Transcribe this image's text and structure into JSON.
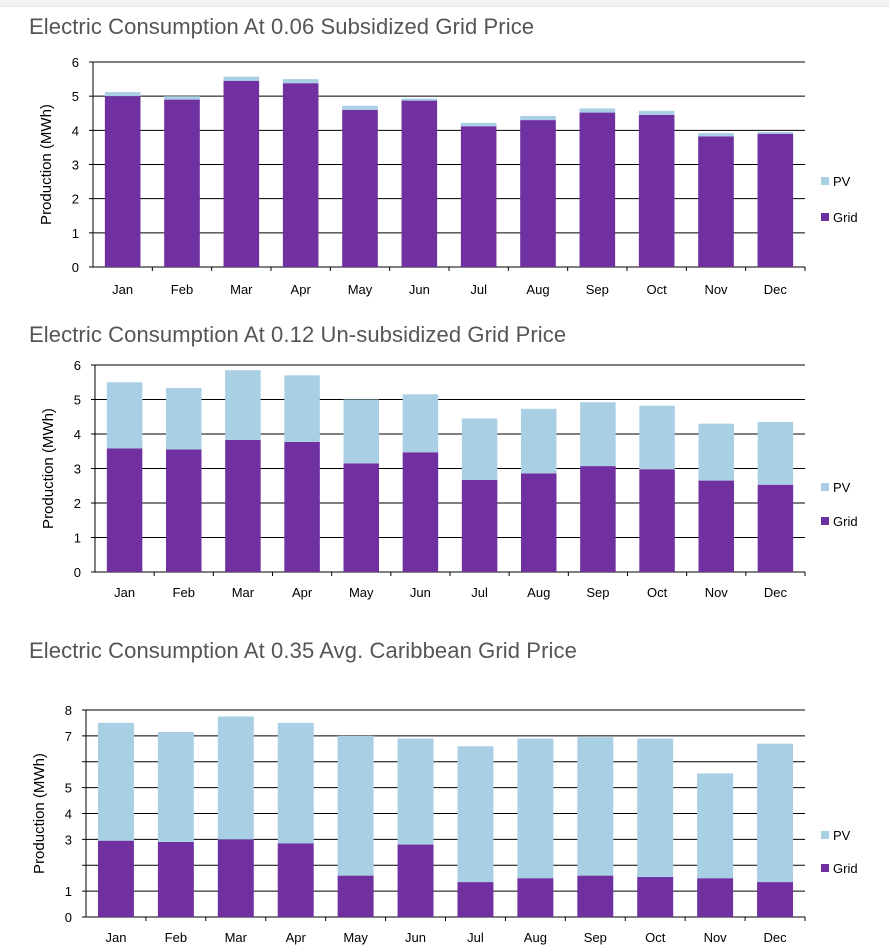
{
  "chart_data": [
    {
      "type": "bar",
      "stacked": true,
      "title": "Electric Consumption At 0.06 Subsidized Grid Price",
      "ylabel": "Production (MWh)",
      "xlabel": "",
      "ylim": [
        0,
        6
      ],
      "yticks": [
        0,
        1,
        2,
        3,
        4,
        5,
        6
      ],
      "grid": true,
      "legend_position": "right",
      "categories": [
        "Jan",
        "Feb",
        "Mar",
        "Apr",
        "May",
        "Jun",
        "Jul",
        "Aug",
        "Sep",
        "Oct",
        "Nov",
        "Dec"
      ],
      "series": [
        {
          "name": "Grid",
          "color": "#7030a0",
          "values": [
            5.0,
            4.9,
            5.45,
            5.38,
            4.6,
            4.87,
            4.12,
            4.3,
            4.52,
            4.45,
            3.82,
            3.9
          ]
        },
        {
          "name": "PV",
          "color": "#a9cfe5",
          "values": [
            0.12,
            0.1,
            0.12,
            0.12,
            0.12,
            0.06,
            0.1,
            0.12,
            0.12,
            0.12,
            0.1,
            0.05
          ]
        }
      ],
      "legend_order": [
        "PV",
        "Grid"
      ]
    },
    {
      "type": "bar",
      "stacked": true,
      "title": "Electric Consumption At 0.12 Un-subsidized Grid Price",
      "ylabel": "Production (MWh)",
      "xlabel": "",
      "ylim": [
        0,
        6
      ],
      "yticks": [
        0,
        1,
        2,
        3,
        4,
        5,
        6
      ],
      "grid": true,
      "legend_position": "right",
      "categories": [
        "Jan",
        "Feb",
        "Mar",
        "Apr",
        "May",
        "Jun",
        "Jul",
        "Aug",
        "Sep",
        "Oct",
        "Nov",
        "Dec"
      ],
      "series": [
        {
          "name": "Grid",
          "color": "#7030a0",
          "values": [
            3.58,
            3.55,
            3.83,
            3.77,
            3.15,
            3.47,
            2.67,
            2.86,
            3.07,
            2.98,
            2.65,
            2.53
          ]
        },
        {
          "name": "PV",
          "color": "#a9cfe5",
          "values": [
            1.92,
            1.78,
            2.02,
            1.93,
            1.85,
            1.68,
            1.78,
            1.87,
            1.85,
            1.84,
            1.65,
            1.82
          ]
        }
      ],
      "legend_order": [
        "PV",
        "Grid"
      ]
    },
    {
      "type": "bar",
      "stacked": true,
      "title": "Electric Consumption At 0.35 Avg. Caribbean Grid Price",
      "ylabel": "Production (MWh)",
      "xlabel": "",
      "ylim": [
        0,
        8
      ],
      "yticks": [
        0,
        1,
        3,
        4,
        5,
        7,
        8
      ],
      "grid": true,
      "legend_position": "right",
      "categories": [
        "Jan",
        "Feb",
        "Mar",
        "Apr",
        "May",
        "Jun",
        "Jul",
        "Aug",
        "Sep",
        "Oct",
        "Nov",
        "Dec"
      ],
      "series": [
        {
          "name": "Grid",
          "color": "#7030a0",
          "values": [
            2.95,
            2.9,
            3.0,
            2.85,
            1.6,
            2.8,
            1.35,
            1.5,
            1.6,
            1.55,
            1.5,
            1.35
          ]
        },
        {
          "name": "PV",
          "color": "#a9cfe5",
          "values": [
            4.55,
            4.25,
            4.75,
            4.65,
            5.4,
            4.1,
            5.25,
            5.4,
            5.35,
            5.35,
            4.05,
            5.35
          ]
        }
      ],
      "legend_order": [
        "PV",
        "Grid"
      ]
    }
  ]
}
